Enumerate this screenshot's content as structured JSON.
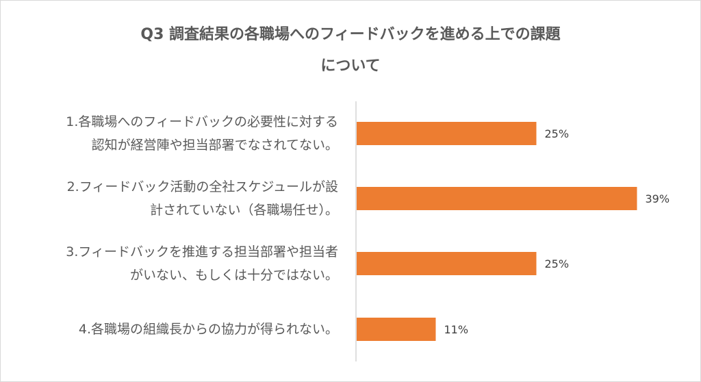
{
  "chart_data": {
    "type": "bar",
    "orientation": "horizontal",
    "title": "Q3 調査結果の各職場へのフィードバックを進める上での課題\nについて",
    "categories": [
      "1.各職場へのフィードバックの必要性に対する\n認知が経営陣や担当部署でなされてない。",
      "2.フィードバック活動の全社スケジュールが設\n計されていない（各職場任せ）。",
      "3.フィードバックを推進する担当部署や担当者\nがいない、もしくは十分ではない。",
      "4.各職場の組織長からの協力が得られない。"
    ],
    "values": [
      25,
      39,
      25,
      11
    ],
    "value_labels": [
      "25%",
      "39%",
      "25%",
      "11%"
    ],
    "unit": "%",
    "bar_color": "#ED7D31",
    "axis_color": "#BFBFBF",
    "grid": false,
    "legend": "none"
  }
}
